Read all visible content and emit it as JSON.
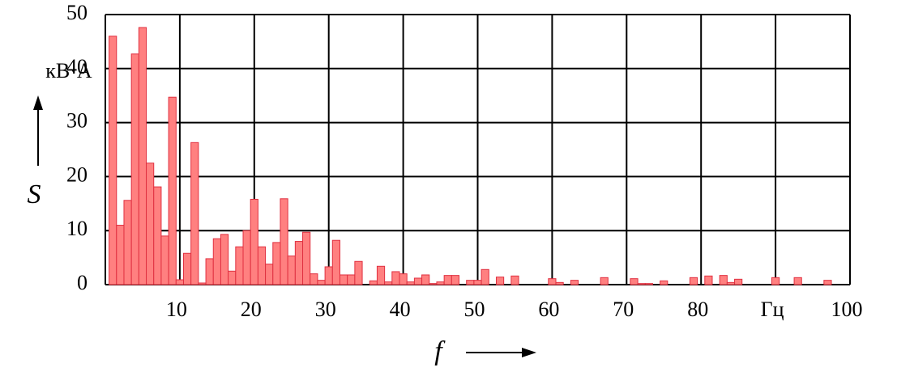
{
  "chart_data": {
    "type": "bar",
    "ylabel": "S",
    "yunit": "кВ·А",
    "xlabel": "f",
    "x": [
      1,
      2,
      3,
      4,
      5,
      6,
      7,
      8,
      9,
      10,
      11,
      12,
      13,
      14,
      15,
      16,
      17,
      18,
      19,
      20,
      21,
      22,
      23,
      24,
      25,
      26,
      27,
      28,
      29,
      30,
      31,
      32,
      33,
      34,
      36,
      37,
      38,
      39,
      40,
      41,
      42,
      43,
      44,
      45,
      46,
      47,
      49,
      50,
      51,
      53,
      55,
      60,
      61,
      63,
      67,
      71,
      72,
      73,
      75,
      79,
      81,
      83,
      84,
      85,
      90,
      93,
      97
    ],
    "values": [
      46,
      11,
      15.6,
      42.7,
      47.6,
      22.5,
      18.1,
      9,
      34.7,
      0.9,
      5.8,
      26.3,
      0.3,
      4.8,
      8.5,
      9.3,
      2.5,
      7,
      10,
      15.8,
      7,
      3.8,
      7.8,
      15.9,
      5.3,
      8,
      9.7,
      2,
      0.8,
      3.3,
      8.2,
      1.8,
      1.8,
      4.3,
      0.7,
      3.4,
      0.5,
      2.4,
      2,
      0.5,
      1.2,
      1.8,
      0.2,
      0.5,
      1.7,
      1.7,
      0.8,
      0.8,
      2.8,
      1.4,
      1.6,
      1.1,
      0.4,
      0.8,
      1.3,
      1.1,
      0.2,
      0.2,
      0.7,
      1.3,
      1.6,
      1.7,
      0.4,
      1,
      1.3,
      1.3,
      0.8
    ],
    "color": "#ff8080",
    "edge": "#e03040",
    "xlim": [
      0,
      100
    ],
    "ylim": [
      0,
      50
    ],
    "xticks": [
      10,
      20,
      30,
      40,
      50,
      60,
      70,
      80,
      {
        "value": 90,
        "label": "Гц"
      },
      100
    ],
    "yticks": [
      0,
      10,
      20,
      30,
      40,
      50
    ],
    "grid": true
  }
}
